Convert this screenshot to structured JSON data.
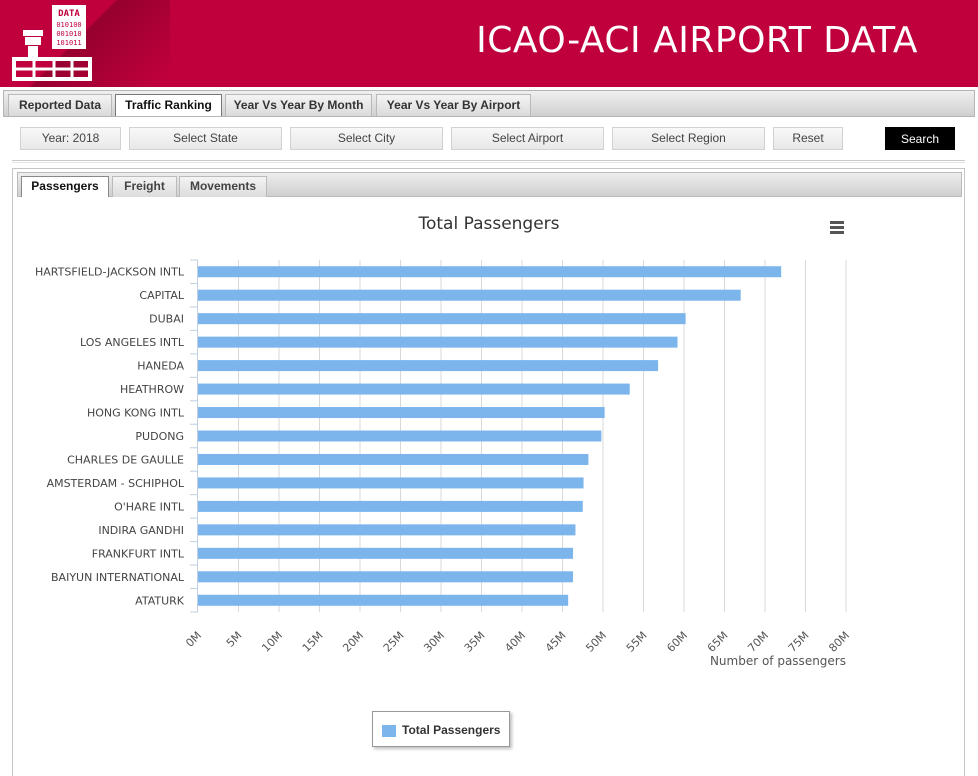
{
  "header": {
    "logo_text": "DATA",
    "logo_bits": [
      "010100",
      "001010",
      "101011"
    ],
    "title": "ICAO-ACI AIRPORT DATA",
    "accent_color": "#c0003c"
  },
  "main_tabs": [
    {
      "label": "Reported Data",
      "active": false
    },
    {
      "label": "Traffic Ranking",
      "active": true
    },
    {
      "label": "Year Vs Year By Month",
      "active": false
    },
    {
      "label": "Year Vs Year By Airport",
      "active": false
    }
  ],
  "filters": {
    "year": "Year: 2018",
    "state": "Select State",
    "city": "Select City",
    "airport": "Select Airport",
    "region": "Select Region",
    "reset": "Reset",
    "search": "Search"
  },
  "sub_tabs": [
    {
      "label": "Passengers",
      "active": true
    },
    {
      "label": "Freight",
      "active": false
    },
    {
      "label": "Movements",
      "active": false
    }
  ],
  "chart_menu_icon": "hamburger-menu-icon",
  "chart_data": {
    "type": "bar",
    "orientation": "horizontal",
    "title": "Total Passengers",
    "xlabel": "Number of passengers",
    "ylabel": "",
    "categories": [
      "HARTSFIELD-JACKSON INTL",
      "CAPITAL",
      "DUBAI",
      "LOS ANGELES INTL",
      "HANEDA",
      "HEATHROW",
      "HONG KONG INTL",
      "PUDONG",
      "CHARLES DE GAULLE",
      "AMSTERDAM - SCHIPHOL",
      "O'HARE INTL",
      "INDIRA GANDHI",
      "FRANKFURT INTL",
      "BAIYUN INTERNATIONAL",
      "ATATURK"
    ],
    "series": [
      {
        "name": "Total Passengers",
        "color": "#7cb5ec",
        "values": [
          72.0,
          67.0,
          60.2,
          59.2,
          56.8,
          53.3,
          50.2,
          49.8,
          48.2,
          47.6,
          47.5,
          46.6,
          46.3,
          46.3,
          45.7
        ]
      }
    ],
    "xlim": [
      0,
      80
    ],
    "x_ticks": [
      "0M",
      "5M",
      "10M",
      "15M",
      "20M",
      "25M",
      "30M",
      "35M",
      "40M",
      "45M",
      "50M",
      "55M",
      "60M",
      "65M",
      "70M",
      "75M",
      "80M"
    ],
    "grid": true,
    "legend": "bottom-center"
  }
}
